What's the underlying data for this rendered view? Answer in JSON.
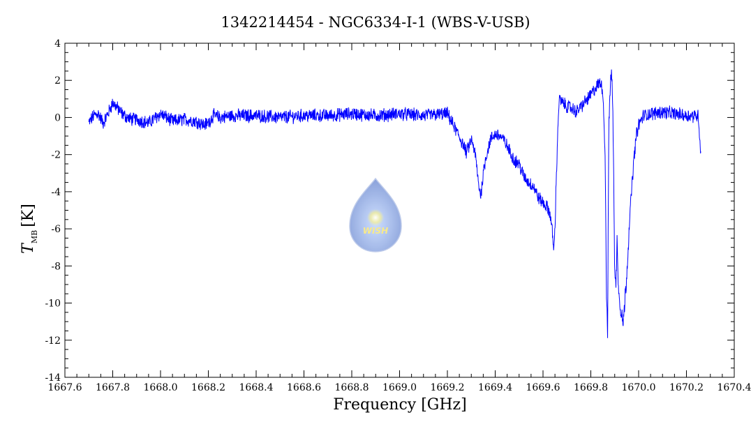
{
  "chart_data": {
    "type": "line",
    "title": "1342214454 - NGC6334-I-1 (WBS-V-USB)",
    "xlabel": "Frequency [GHz]",
    "ylabel": "T",
    "ylabel_sub": "MB",
    "ylabel_unit": "[K]",
    "xlim": [
      1667.6,
      1670.4
    ],
    "ylim": [
      -14,
      4
    ],
    "x_ticks": [
      "1667.6",
      "1667.8",
      "1668.0",
      "1668.2",
      "1668.4",
      "1668.6",
      "1668.8",
      "1669.0",
      "1669.2",
      "1669.4",
      "1669.6",
      "1669.8",
      "1670.0",
      "1670.2",
      "1670.4"
    ],
    "y_ticks": [
      "-14",
      "-12",
      "-10",
      "-8",
      "-6",
      "-4",
      "-2",
      "0",
      "2",
      "4"
    ],
    "grid": false,
    "color": "#0000ff",
    "watermark": "WISH",
    "series": [
      {
        "x": [
          1667.7,
          1667.72,
          1667.74,
          1667.76,
          1667.78,
          1667.8,
          1667.82,
          1667.84,
          1667.86,
          1667.88,
          1667.9,
          1667.95,
          1668.0,
          1668.05,
          1668.1,
          1668.15,
          1668.18,
          1668.2,
          1668.22,
          1668.25,
          1668.3,
          1668.4,
          1668.5,
          1668.6,
          1668.7,
          1668.8,
          1668.9,
          1669.0,
          1669.1,
          1669.2,
          1669.22,
          1669.24,
          1669.26,
          1669.28,
          1669.3,
          1669.31,
          1669.32,
          1669.33,
          1669.34,
          1669.35,
          1669.36,
          1669.38,
          1669.4,
          1669.42,
          1669.44,
          1669.46,
          1669.48,
          1669.5,
          1669.52,
          1669.54,
          1669.56,
          1669.58,
          1669.6,
          1669.62,
          1669.63,
          1669.64,
          1669.645,
          1669.65,
          1669.655,
          1669.66,
          1669.665,
          1669.67,
          1669.68,
          1669.7,
          1669.72,
          1669.74,
          1669.76,
          1669.78,
          1669.8,
          1669.82,
          1669.84,
          1669.85,
          1669.86,
          1669.865,
          1669.87,
          1669.875,
          1669.88,
          1669.885,
          1669.89,
          1669.895,
          1669.9,
          1669.905,
          1669.91,
          1669.915,
          1669.92,
          1669.93,
          1669.935,
          1669.94,
          1669.95,
          1669.96,
          1669.97,
          1669.98,
          1669.99,
          1670.0,
          1670.02,
          1670.05,
          1670.1,
          1670.15,
          1670.2,
          1670.25,
          1670.255,
          1670.26
        ],
        "y": [
          -0.3,
          0.1,
          0.2,
          -0.3,
          0.2,
          0.8,
          0.5,
          0.2,
          0.0,
          -0.1,
          -0.1,
          -0.3,
          0.2,
          -0.2,
          -0.1,
          -0.2,
          -0.4,
          -0.3,
          0.1,
          0.0,
          0.1,
          0.1,
          0.0,
          0.1,
          0.1,
          0.2,
          0.1,
          0.2,
          0.1,
          0.2,
          -0.3,
          -0.8,
          -1.3,
          -1.9,
          -1.2,
          -1.6,
          -2.3,
          -3.6,
          -4.2,
          -3.0,
          -2.2,
          -1.2,
          -0.9,
          -1.0,
          -1.3,
          -1.8,
          -2.3,
          -2.5,
          -3.2,
          -3.5,
          -3.7,
          -4.3,
          -4.6,
          -4.9,
          -5.2,
          -6.3,
          -7.2,
          -6.0,
          -3.5,
          -1.5,
          0.5,
          1.0,
          0.8,
          0.6,
          0.5,
          0.3,
          0.6,
          0.9,
          1.2,
          1.6,
          1.9,
          1.5,
          -2.0,
          -9.0,
          -12.0,
          -1.0,
          1.5,
          2.4,
          1.6,
          -2.0,
          -8.5,
          -9.2,
          -6.5,
          -8.8,
          -10.0,
          -10.5,
          -11.2,
          -10.3,
          -8.5,
          -6.0,
          -4.0,
          -2.3,
          -1.0,
          -0.4,
          0.1,
          0.2,
          0.3,
          0.2,
          0.1,
          0.1,
          -1.0,
          -1.9
        ]
      }
    ]
  }
}
